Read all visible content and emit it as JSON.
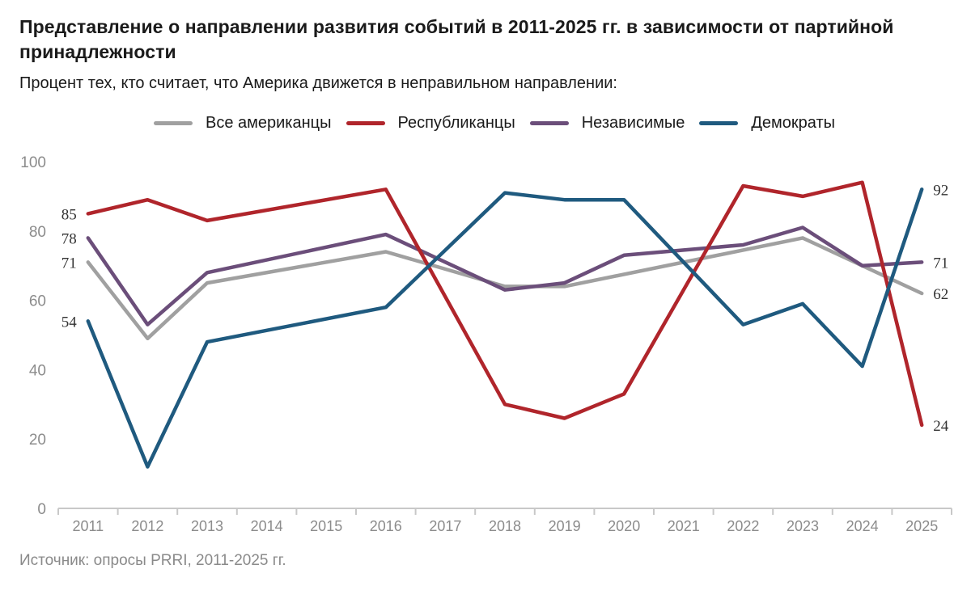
{
  "header": {
    "title": "Представление о направлении развития событий в 2011-2025 гг. в зависимости от партийной принадлежности",
    "subtitle": "Процент тех, кто считает, что Америка движется в неправильном направлении:"
  },
  "footer": {
    "source": "Источник: опросы PRRI, 2011-2025 гг."
  },
  "colors": {
    "all": "#a0a0a0",
    "rep": "#b0252b",
    "ind": "#6b4e7a",
    "dem": "#1f5a7f",
    "axis": "#c8c8c8",
    "tick_text": "#8c8c8c",
    "label_text": "#333333"
  },
  "chart_data": {
    "type": "line",
    "title": "Представление о направлении развития событий в 2011-2025 гг. в зависимости от партийной принадлежности",
    "xlabel": "",
    "ylabel": "",
    "ylim": [
      0,
      100
    ],
    "yticks": [
      "0",
      "20",
      "40",
      "60",
      "80",
      "100"
    ],
    "grid": false,
    "legend_position": "top",
    "x": [
      "2011",
      "2012",
      "2013",
      "2014",
      "2015",
      "2016",
      "2017",
      "2018",
      "2019",
      "2020",
      "2021",
      "2022",
      "2023",
      "2024",
      "2025"
    ],
    "series": [
      {
        "key": "all",
        "name": "Все американцы",
        "values": [
          71,
          49,
          65,
          null,
          null,
          74,
          null,
          64,
          64,
          null,
          null,
          null,
          78,
          null,
          62
        ]
      },
      {
        "key": "rep",
        "name": "Республиканцы",
        "values": [
          85,
          89,
          83,
          null,
          null,
          92,
          null,
          30,
          26,
          33,
          null,
          93,
          90,
          94,
          24
        ]
      },
      {
        "key": "ind",
        "name": "Независимые",
        "values": [
          78,
          53,
          68,
          null,
          null,
          79,
          null,
          63,
          65,
          73,
          null,
          76,
          81,
          70,
          71
        ]
      },
      {
        "key": "dem",
        "name": "Демократы",
        "values": [
          54,
          12,
          48,
          null,
          null,
          58,
          null,
          91,
          89,
          89,
          null,
          53,
          59,
          41,
          92
        ]
      }
    ],
    "annotations": [
      {
        "series": "rep",
        "year": "2011",
        "text": "85",
        "side": "left"
      },
      {
        "series": "ind",
        "year": "2011",
        "text": "78",
        "side": "left"
      },
      {
        "series": "all",
        "year": "2011",
        "text": "71",
        "side": "left"
      },
      {
        "series": "dem",
        "year": "2011",
        "text": "54",
        "side": "left"
      },
      {
        "series": "dem",
        "year": "2025",
        "text": "92",
        "side": "right"
      },
      {
        "series": "ind",
        "year": "2025",
        "text": "71",
        "side": "right"
      },
      {
        "series": "all",
        "year": "2025",
        "text": "62",
        "side": "right"
      },
      {
        "series": "rep",
        "year": "2025",
        "text": "24",
        "side": "right"
      }
    ]
  }
}
